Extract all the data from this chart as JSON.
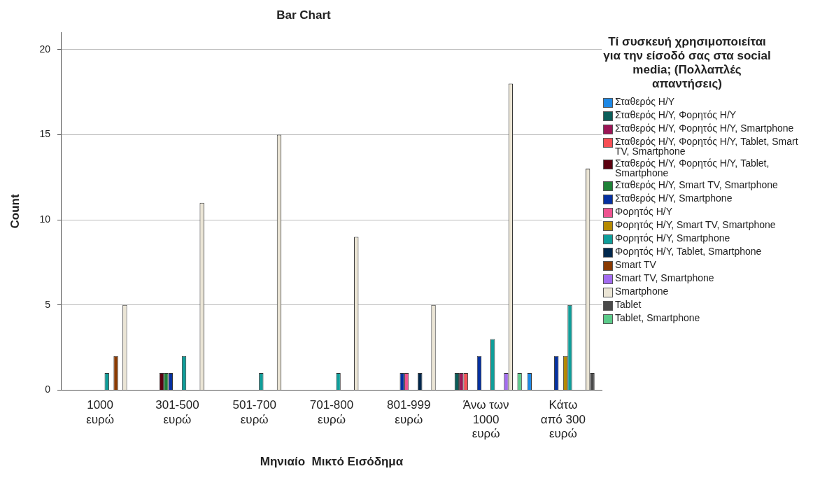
{
  "chart_data": {
    "type": "bar",
    "title": "Bar Chart",
    "xlabel": "Μηνιαίο  Μικτό Εισόδημα",
    "ylabel": "Count",
    "legend_title": "Τί συσκευή χρησιμοποιείται για την είσοδό σας στα social media; (Πολλαπλές απαντήσεις)",
    "categories": [
      "1000 ευρώ",
      "301-500 ευρώ",
      "501-700 ευρώ",
      "701-800 ευρώ",
      "801-999 ευρώ",
      "Άνω των 1000 ευρώ",
      "Κάτω από 300 ευρώ"
    ],
    "ylim": [
      0,
      21
    ],
    "yticks": [
      0,
      5,
      10,
      15,
      20
    ],
    "grid": "y",
    "legend": "right",
    "series": [
      {
        "name": "Σταθερός Η/Υ",
        "color": "#1e88e5",
        "values": [
          null,
          null,
          null,
          null,
          null,
          null,
          1
        ]
      },
      {
        "name": "Σταθερός Η/Υ, Φορητός Η/Υ",
        "color": "#0b5e5a",
        "values": [
          null,
          null,
          null,
          null,
          null,
          1,
          null
        ]
      },
      {
        "name": "Σταθερός Η/Υ, Φορητός Η/Υ, Smartphone",
        "color": "#9b1656",
        "values": [
          null,
          null,
          null,
          null,
          null,
          1,
          null
        ]
      },
      {
        "name": "Σταθερός Η/Υ, Φορητός Η/Υ, Tablet, Smart TV, Smartphone",
        "color": "#f74f55",
        "values": [
          null,
          null,
          null,
          null,
          null,
          1,
          null
        ]
      },
      {
        "name": "Σταθερός Η/Υ, Φορητός Η/Υ, Tablet, Smartphone",
        "color": "#5b0010",
        "values": [
          null,
          1,
          null,
          null,
          null,
          null,
          null
        ]
      },
      {
        "name": "Σταθερός Η/Υ, Smart TV, Smartphone",
        "color": "#1f8138",
        "values": [
          null,
          1,
          null,
          null,
          null,
          null,
          null
        ]
      },
      {
        "name": "Σταθερός Η/Υ, Smartphone",
        "color": "#0530a0",
        "values": [
          null,
          1,
          null,
          null,
          1,
          2,
          2
        ]
      },
      {
        "name": "Φορητός Η/Υ",
        "color": "#ee5390",
        "values": [
          null,
          null,
          null,
          null,
          1,
          null,
          null
        ]
      },
      {
        "name": "Φορητός Η/Υ, Smart TV, Smartphone",
        "color": "#b68a00",
        "values": [
          null,
          null,
          null,
          null,
          null,
          null,
          2
        ]
      },
      {
        "name": "Φορητός Η/Υ, Smartphone",
        "color": "#0f9e9a",
        "values": [
          1,
          2,
          1,
          1,
          null,
          3,
          5
        ]
      },
      {
        "name": "Φορητός Η/Υ, Tablet, Smartphone",
        "color": "#00284d",
        "values": [
          null,
          null,
          null,
          null,
          1,
          null,
          null
        ]
      },
      {
        "name": "Smart TV",
        "color": "#8a3a00",
        "values": [
          2,
          null,
          null,
          null,
          null,
          null,
          null
        ]
      },
      {
        "name": "Smart TV, Smartphone",
        "color": "#a36cf0",
        "values": [
          null,
          null,
          null,
          null,
          null,
          1,
          null
        ]
      },
      {
        "name": "Smartphone",
        "color": "#ebe5d5",
        "values": [
          5,
          11,
          15,
          9,
          5,
          18,
          13
        ]
      },
      {
        "name": "Tablet",
        "color": "#4a4a4a",
        "values": [
          null,
          null,
          null,
          null,
          null,
          null,
          1
        ]
      },
      {
        "name": "Tablet, Smartphone",
        "color": "#5ccb8a",
        "values": [
          null,
          null,
          null,
          null,
          null,
          1,
          null
        ]
      }
    ]
  }
}
